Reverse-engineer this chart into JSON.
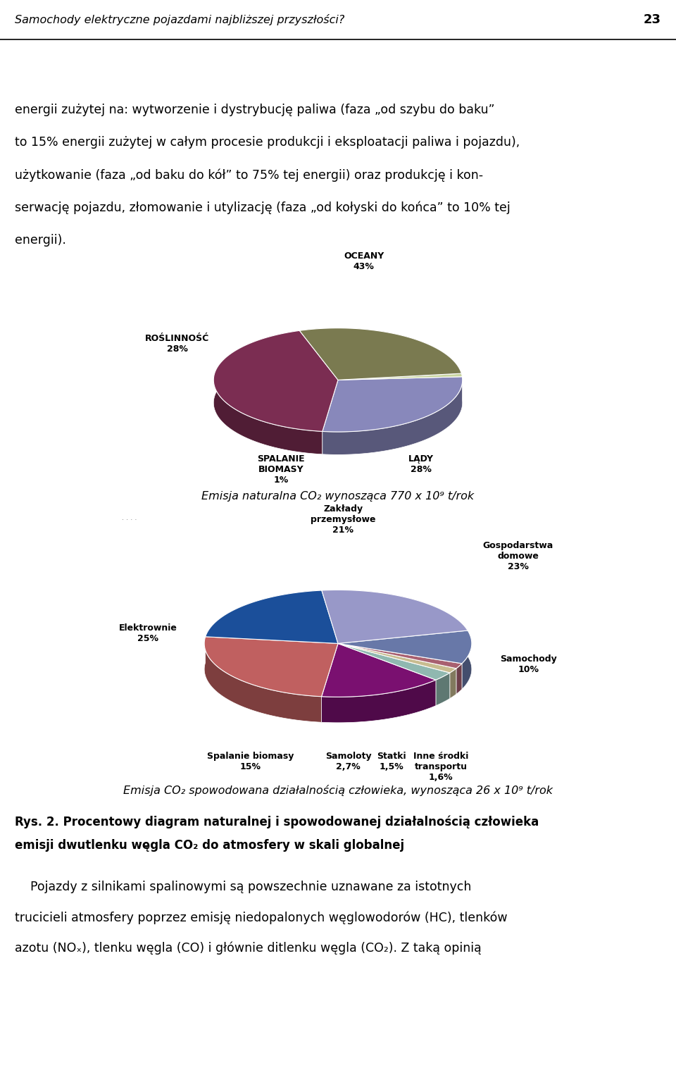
{
  "page_title": "Samochody elektryczne pojazdami najbliższej przyszłości?",
  "page_number": "23",
  "intro_lines": [
    "energii zużytej na: wytworzenie i dystrybucję paliwa (faza „od szybu do baku”",
    "to 15% energii zużytej w całym procesie produkcji i eksploatacji paliwa i pojazdu),",
    "użytkowanie (faza „od baku do kół” to 75% tej energii) oraz produkcję i kon-",
    "serwację pojazdu, złomowanie i utylizację (faza „od kołyski do końca” to 10% tej",
    "energii)."
  ],
  "pie1_values": [
    43,
    28,
    1,
    28
  ],
  "pie1_colors": [
    "#7B2D52",
    "#8888BB",
    "#C8D4A0",
    "#7A7A50"
  ],
  "pie1_startangle": 108,
  "pie1_label_oceany": "OCEANY\n43%",
  "pie1_label_roslinnosc": "ROŚLINNOŚĆ\n28%",
  "pie1_label_spalanie": "SPALANIE\nBIOMASY\n1%",
  "pie1_label_lady": "LĄDY\n28%",
  "pie1_caption": "Emisja naturalna CO₂ wynosząca 770 x 10⁹ t/rok",
  "pie2_values": [
    21,
    25,
    15,
    2.7,
    1.5,
    1.6,
    10,
    23
  ],
  "pie2_colors": [
    "#1B4F9A",
    "#C06060",
    "#7A1070",
    "#90B8B0",
    "#C8BC90",
    "#A86070",
    "#6878A8",
    "#9898C8"
  ],
  "pie2_startangle": 97,
  "pie2_label_zaklady": "Zakłady\nprzemysłowe\n21%",
  "pie2_label_elektrownie": "Elektrownie\n25%",
  "pie2_label_spalanie": "Spalanie biomasy\n15%",
  "pie2_label_samoloty": "Samoloty\n2,7%",
  "pie2_label_statki": "Statki\n1,5%",
  "pie2_label_inne": "Inne środki\ntransportu\n1,6%",
  "pie2_label_samochody": "Samochody\n10%",
  "pie2_label_gospodarstwa": "Gospodarstwa\ndomowe\n23%",
  "pie2_caption": "Emisja CO₂ spowodowana działalnością człowieka, wynosząca 26 x 10⁹ t/rok",
  "fig_caption_line1": "Rys. 2. Procentowy diagram naturalnej i spowodowanej działalnością człowieka",
  "fig_caption_line2": "emisji dwutlenku węgla CO₂ do atmosfery w skali globalnej",
  "bottom_lines": [
    "    Pojazdy z silnikami spalinowymi są powszechnie uznawane za istotnych",
    "trucicieli atmosfery poprzez emisję niedopalonych węglowodorów (HC), tlenków",
    "azotu (NOₓ), tlenku węgla (CO) i głównie ditlenku węgla (CO₂). Z taką opinią"
  ],
  "bg_color": "#ffffff",
  "text_color": "#000000"
}
